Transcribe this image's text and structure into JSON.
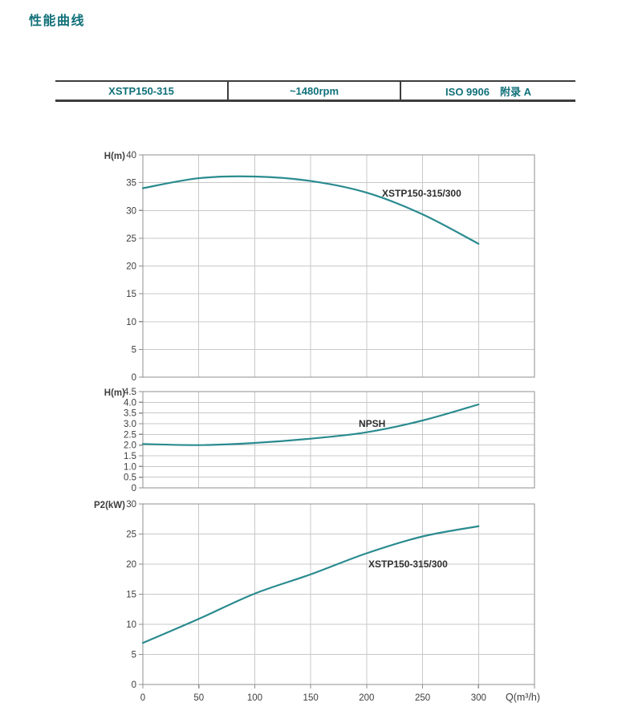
{
  "page": {
    "title": "性能曲线"
  },
  "header_table": {
    "cells": [
      {
        "label": "XSTP150-315"
      },
      {
        "label": "~1480rpm"
      },
      {
        "label": "ISO 9906　附录 A"
      }
    ]
  },
  "colors": {
    "teal": "#107079",
    "curve": "#2a8b8f",
    "grid": "#c8c8c8",
    "plot_border": "#8f8f8f",
    "tick_text": "#3d3d3d",
    "annotation_text": "#2e2e2e"
  },
  "x_axis": {
    "label": "Q(m³/h)",
    "ticks": [
      0,
      50,
      100,
      150,
      200,
      250,
      300
    ],
    "tick_labels": [
      "0",
      "50",
      "100",
      "150",
      "200",
      "250",
      "300"
    ],
    "xlim": [
      0,
      350
    ],
    "grid": true
  },
  "chart_data": [
    {
      "type": "line",
      "name": "head-curve",
      "ylabel": "H(m)",
      "series_label": "XSTP150-315/300",
      "x": [
        0,
        50,
        100,
        150,
        200,
        250,
        300
      ],
      "y": [
        34,
        35.8,
        36.1,
        35.3,
        33.2,
        29.3,
        24
      ],
      "ylim": [
        0,
        40
      ],
      "yticks": [
        40,
        35,
        30,
        25,
        20,
        15,
        10,
        5,
        0
      ],
      "ytick_labels": [
        "40",
        "35",
        "30",
        "25",
        "20",
        "15",
        "10",
        "5",
        "0"
      ],
      "grid": true,
      "legend_position": "inline-annotation"
    },
    {
      "type": "line",
      "name": "npsh-curve",
      "ylabel": "H(m)",
      "series_label": "NPSH",
      "x": [
        0,
        50,
        100,
        150,
        200,
        250,
        300
      ],
      "y": [
        2.05,
        2.0,
        2.1,
        2.3,
        2.6,
        3.15,
        3.9
      ],
      "ylim": [
        0,
        4.5
      ],
      "yticks": [
        4.5,
        4.0,
        3.5,
        3.0,
        2.5,
        2.0,
        1.5,
        1.0,
        0.5,
        0
      ],
      "ytick_labels": [
        "4.5",
        "4.0",
        "3.5",
        "3.0",
        "2.5",
        "2.0",
        "1.5",
        "1.0",
        "0.5",
        "0"
      ],
      "grid": true,
      "legend_position": "inline-annotation"
    },
    {
      "type": "line",
      "name": "power-curve",
      "ylabel": "P2(kW)",
      "series_label": "XSTP150-315/300",
      "x": [
        0,
        50,
        100,
        150,
        200,
        250,
        300
      ],
      "y": [
        6.9,
        10.9,
        15.1,
        18.3,
        21.8,
        24.6,
        26.3
      ],
      "ylim": [
        0,
        30
      ],
      "yticks": [
        30,
        25,
        20,
        15,
        10,
        5,
        0
      ],
      "ytick_labels": [
        "30",
        "25",
        "20",
        "15",
        "10",
        "5",
        "0"
      ],
      "grid": true,
      "legend_position": "inline-annotation"
    }
  ]
}
